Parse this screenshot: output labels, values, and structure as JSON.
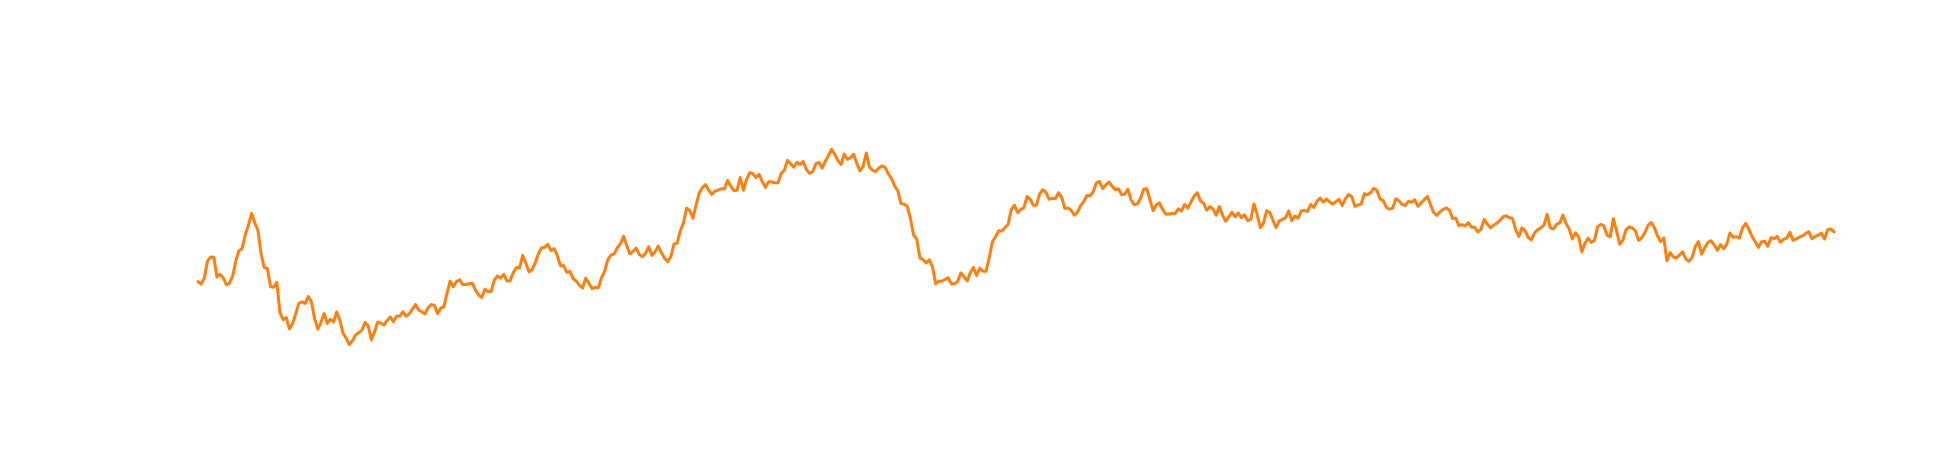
{
  "chart_data": {
    "type": "line",
    "title": "",
    "xlabel": "",
    "ylabel": "",
    "axes_visible": false,
    "grid": false,
    "legend": "none",
    "ylim": [
      0,
      1
    ],
    "xlim": [
      0,
      519
    ],
    "series": [
      {
        "color": "#ff7f0e",
        "knots": [
          [
            0,
            0.26
          ],
          [
            4,
            0.35
          ],
          [
            6,
            0.27
          ],
          [
            10,
            0.29
          ],
          [
            13,
            0.36
          ],
          [
            17,
            0.52
          ],
          [
            21,
            0.36
          ],
          [
            25,
            0.22
          ],
          [
            29,
            0.1
          ],
          [
            33,
            0.2
          ],
          [
            38,
            0.12
          ],
          [
            44,
            0.14
          ],
          [
            50,
            0.04
          ],
          [
            55,
            0.1
          ],
          [
            62,
            0.13
          ],
          [
            69,
            0.18
          ],
          [
            75,
            0.16
          ],
          [
            80,
            0.26
          ],
          [
            86,
            0.25
          ],
          [
            92,
            0.25
          ],
          [
            98,
            0.27
          ],
          [
            104,
            0.32
          ],
          [
            110,
            0.42
          ],
          [
            115,
            0.34
          ],
          [
            120,
            0.27
          ],
          [
            126,
            0.25
          ],
          [
            131,
            0.35
          ],
          [
            135,
            0.42
          ],
          [
            140,
            0.39
          ],
          [
            145,
            0.36
          ],
          [
            150,
            0.37
          ],
          [
            156,
            0.55
          ],
          [
            160,
            0.59
          ],
          [
            166,
            0.62
          ],
          [
            172,
            0.64
          ],
          [
            178,
            0.64
          ],
          [
            184,
            0.67
          ],
          [
            190,
            0.68
          ],
          [
            196,
            0.7
          ],
          [
            202,
            0.74
          ],
          [
            208,
            0.71
          ],
          [
            214,
            0.69
          ],
          [
            218,
            0.67
          ],
          [
            222,
            0.62
          ],
          [
            228,
            0.55
          ],
          [
            234,
            0.58
          ],
          [
            240,
            0.62
          ],
          [
            246,
            0.61
          ],
          [
            252,
            0.58
          ],
          [
            258,
            0.52
          ],
          [
            264,
            0.58
          ],
          [
            270,
            0.6
          ],
          [
            276,
            0.56
          ],
          [
            280,
            0.52
          ],
          [
            285,
            0.62
          ],
          [
            288,
            0.6
          ],
          [
            294,
            0.59
          ],
          [
            300,
            0.57
          ],
          [
            306,
            0.55
          ],
          [
            312,
            0.56
          ],
          [
            318,
            0.57
          ],
          [
            324,
            0.53
          ],
          [
            330,
            0.52
          ],
          [
            336,
            0.5
          ],
          [
            342,
            0.48
          ],
          [
            348,
            0.51
          ],
          [
            354,
            0.55
          ],
          [
            360,
            0.56
          ],
          [
            366,
            0.53
          ],
          [
            372,
            0.57
          ],
          [
            378,
            0.56
          ],
          [
            384,
            0.54
          ],
          [
            390,
            0.56
          ],
          [
            396,
            0.52
          ],
          [
            402,
            0.48
          ],
          [
            408,
            0.48
          ],
          [
            414,
            0.49
          ],
          [
            420,
            0.47
          ],
          [
            426,
            0.45
          ],
          [
            432,
            0.47
          ],
          [
            438,
            0.44
          ],
          [
            444,
            0.45
          ],
          [
            450,
            0.44
          ],
          [
            456,
            0.44
          ],
          [
            462,
            0.45
          ],
          [
            466,
            0.38
          ],
          [
            471,
            0.36
          ],
          [
            476,
            0.38
          ],
          [
            481,
            0.4
          ],
          [
            486,
            0.42
          ],
          [
            492,
            0.46
          ],
          [
            498,
            0.43
          ],
          [
            504,
            0.43
          ],
          [
            510,
            0.44
          ],
          [
            515,
            0.45
          ],
          [
            519,
            0.46
          ]
        ],
        "events": [
          {
            "at": 221,
            "shape": [
              [
                0,
                0.0
              ],
              [
                4,
                -0.07
              ],
              [
                10,
                -0.22
              ],
              [
                14,
                -0.32
              ],
              [
                18,
                -0.36
              ],
              [
                24,
                -0.33
              ],
              [
                28,
                -0.3
              ],
              [
                30,
                -0.22
              ],
              [
                34,
                -0.1
              ],
              [
                38,
                0.0
              ]
            ]
          },
          {
            "at": 362,
            "shape": [
              [
                0,
                0.0
              ],
              [
                4,
                0.06
              ],
              [
                8,
                0.02
              ],
              [
                14,
                0.0
              ]
            ]
          }
        ]
      }
    ]
  }
}
